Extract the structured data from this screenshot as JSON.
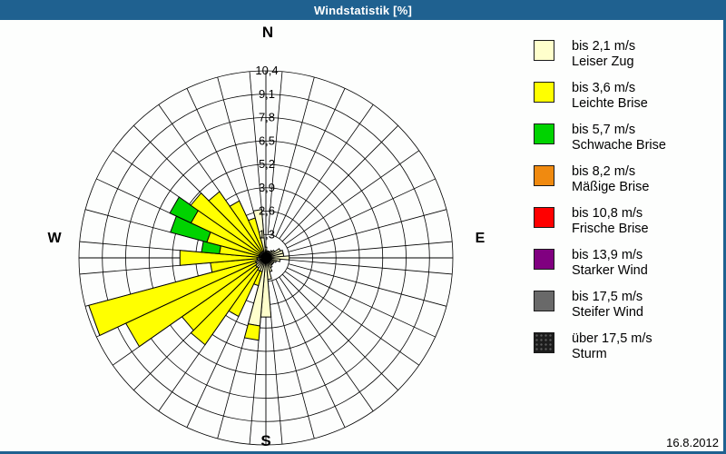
{
  "window": {
    "title": "Windstatistik [%]",
    "date": "16.8.2012",
    "titlebar_color": "#1F6190",
    "frame_color": "#1F6190",
    "background_color": "#FDFEFD"
  },
  "compass": {
    "north": "N",
    "east": "E",
    "south": "S",
    "west": "W"
  },
  "chart_data": {
    "type": "wind-rose",
    "title": "Windstatistik [%]",
    "units": "%",
    "grid": "on",
    "legend_position": "right",
    "sector_width_deg": 10,
    "ring_step": 1.3,
    "rings": [
      1.3,
      2.6,
      3.9,
      5.2,
      6.5,
      7.8,
      9.1,
      10.4
    ],
    "ring_labels": [
      "1,3",
      "2,6",
      "3,9",
      "5,2",
      "6,5",
      "7,8",
      "9,1",
      "10,4"
    ],
    "axis_max": 10.4,
    "directions_deg": [
      0,
      10,
      20,
      30,
      40,
      50,
      60,
      70,
      80,
      90,
      100,
      110,
      120,
      130,
      140,
      150,
      160,
      170,
      180,
      190,
      200,
      210,
      220,
      230,
      240,
      250,
      260,
      270,
      280,
      290,
      300,
      310,
      320,
      330,
      340,
      350
    ],
    "series": [
      {
        "speed": "bis 2,1 m/s",
        "name": "Leiser Zug",
        "color": "#FFFFCC",
        "values": [
          0.6,
          0.4,
          0.4,
          0.4,
          0.5,
          0.6,
          0.9,
          1.0,
          1.0,
          1.3,
          0.8,
          0.6,
          0.5,
          0.5,
          0.5,
          0.6,
          0.8,
          1.2,
          3.3,
          3.8,
          0.8,
          0.8,
          0.7,
          0.7,
          0.6,
          0.6,
          0.5,
          0.5,
          0.4,
          0.4,
          0.4,
          0.4,
          0.4,
          0.4,
          0.4,
          2.7
        ]
      },
      {
        "speed": "bis 3,6 m/s",
        "name": "Leichte Brise",
        "color": "#FFFF00",
        "values": [
          0,
          0,
          0,
          0,
          0,
          0,
          0,
          0,
          0,
          0,
          0,
          0,
          0,
          0,
          0,
          0,
          0,
          0,
          0,
          0.8,
          0.8,
          2.8,
          5.2,
          5.0,
          8.0,
          9.6,
          2.6,
          4.3,
          2.2,
          3.0,
          4.2,
          4.7,
          4.1,
          3.1,
          1.9,
          0
        ]
      },
      {
        "speed": "bis 5,7 m/s",
        "name": "Schwache Brise",
        "color": "#00D300",
        "values": [
          0,
          0,
          0,
          0,
          0,
          0,
          0,
          0,
          0,
          0,
          0,
          0,
          0,
          0,
          0,
          0,
          0,
          0,
          0,
          0,
          0,
          0,
          0,
          0,
          0,
          0,
          0,
          0,
          1.0,
          2.1,
          1.3,
          0,
          0,
          0,
          0,
          0
        ]
      },
      {
        "speed": "bis 8,2 m/s",
        "name": "Mäßige Brise",
        "color": "#F08A10",
        "values": [
          0,
          0,
          0,
          0,
          0,
          0,
          0,
          0,
          0,
          0,
          0,
          0,
          0,
          0,
          0,
          0,
          0,
          0,
          0,
          0,
          0,
          0,
          0,
          0,
          0,
          0,
          0,
          0,
          0,
          0,
          0,
          0,
          0,
          0,
          0,
          0
        ]
      },
      {
        "speed": "bis 10,8 m/s",
        "name": "Frische Brise",
        "color": "#FF0000",
        "values": [
          0,
          0,
          0,
          0,
          0,
          0,
          0,
          0,
          0,
          0,
          0,
          0,
          0,
          0,
          0,
          0,
          0,
          0,
          0,
          0,
          0,
          0,
          0,
          0,
          0,
          0,
          0,
          0,
          0,
          0,
          0,
          0,
          0,
          0,
          0,
          0
        ]
      },
      {
        "speed": "bis 13,9 m/s",
        "name": "Starker Wind",
        "color": "#800080",
        "values": [
          0,
          0,
          0,
          0,
          0,
          0,
          0,
          0,
          0,
          0,
          0,
          0,
          0,
          0,
          0,
          0,
          0,
          0,
          0,
          0,
          0,
          0,
          0,
          0,
          0,
          0,
          0,
          0,
          0,
          0,
          0,
          0,
          0,
          0,
          0,
          0
        ]
      },
      {
        "speed": "bis 17,5 m/s",
        "name": "Steifer Wind",
        "color": "#696969",
        "values": [
          0,
          0,
          0,
          0,
          0,
          0,
          0,
          0,
          0,
          0,
          0,
          0,
          0,
          0,
          0,
          0,
          0,
          0,
          0,
          0,
          0,
          0,
          0,
          0,
          0,
          0,
          0,
          0,
          0,
          0,
          0,
          0,
          0,
          0,
          0,
          0
        ]
      },
      {
        "speed": "über 17,5 m/s",
        "name": "Sturm",
        "color": "#1C1C1C",
        "pattern": "dots",
        "values": [
          0,
          0,
          0,
          0,
          0,
          0,
          0,
          0,
          0,
          0,
          0,
          0,
          0,
          0,
          0,
          0,
          0,
          0,
          0,
          0,
          0,
          0,
          0,
          0,
          0,
          0,
          0,
          0,
          0,
          0,
          0,
          0,
          0,
          0,
          0,
          0
        ]
      }
    ]
  }
}
